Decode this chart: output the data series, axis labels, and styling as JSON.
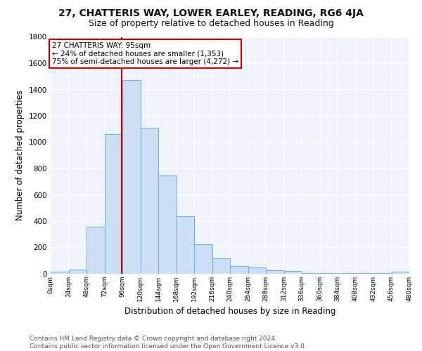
{
  "title1": "27, CHATTERIS WAY, LOWER EARLEY, READING, RG6 4JA",
  "title2": "Size of property relative to detached houses in Reading",
  "xlabel": "Distribution of detached houses by size in Reading",
  "ylabel": "Number of detached properties",
  "bar_color": "#ccdff5",
  "bar_edge_color": "#6aaed6",
  "bin_edges": [
    0,
    24,
    48,
    72,
    96,
    120,
    144,
    168,
    192,
    216,
    240,
    264,
    288,
    312,
    336,
    360,
    384,
    408,
    432,
    456,
    480
  ],
  "bar_heights": [
    15,
    30,
    355,
    1060,
    1470,
    1110,
    745,
    440,
    225,
    115,
    60,
    47,
    25,
    20,
    5,
    5,
    5,
    5,
    5,
    18
  ],
  "tick_labels": [
    "0sqm",
    "24sqm",
    "48sqm",
    "72sqm",
    "96sqm",
    "120sqm",
    "144sqm",
    "168sqm",
    "192sqm",
    "216sqm",
    "240sqm",
    "264sqm",
    "288sqm",
    "312sqm",
    "336sqm",
    "360sqm",
    "384sqm",
    "408sqm",
    "432sqm",
    "456sqm",
    "480sqm"
  ],
  "vline_x": 95,
  "vline_color": "#cc0000",
  "ann_line1": "27 CHATTERIS WAY: 95sqm",
  "ann_line2": "← 24% of detached houses are smaller (1,353)",
  "ann_line3": "75% of semi-detached houses are larger (4,272) →",
  "annotation_box_color": "#cc0000",
  "annotation_box_fill": "#ffffff",
  "ylim": [
    0,
    1800
  ],
  "yticks": [
    0,
    200,
    400,
    600,
    800,
    1000,
    1200,
    1400,
    1600,
    1800
  ],
  "background_color": "#eef2fa",
  "grid_color": "#ffffff",
  "footer_line1": "Contains HM Land Registry data © Crown copyright and database right 2024.",
  "footer_line2": "Contains public sector information licensed under the Open Government Licence v3.0.",
  "title1_fontsize": 10,
  "title2_fontsize": 9,
  "xlabel_fontsize": 8.5,
  "ylabel_fontsize": 8.5,
  "footer_fontsize": 6.5,
  "tick_fontsize": 6.5,
  "ytick_fontsize": 7.5,
  "ann_fontsize": 7.5
}
